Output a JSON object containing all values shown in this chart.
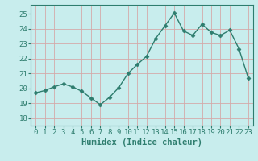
{
  "x": [
    0,
    1,
    2,
    3,
    4,
    5,
    6,
    7,
    8,
    9,
    10,
    11,
    12,
    13,
    14,
    15,
    16,
    17,
    18,
    19,
    20,
    21,
    22,
    23
  ],
  "y": [
    19.7,
    19.85,
    20.1,
    20.3,
    20.1,
    19.8,
    19.35,
    18.9,
    19.4,
    20.05,
    21.0,
    21.6,
    22.15,
    23.35,
    24.2,
    25.05,
    23.85,
    23.55,
    24.3,
    23.75,
    23.55,
    23.9,
    22.65,
    20.7
  ],
  "line_color": "#2e7d6e",
  "bg_color": "#c8eded",
  "grid_color": "#d4aaaa",
  "xlabel": "Humidex (Indice chaleur)",
  "ylim": [
    17.5,
    25.6
  ],
  "xlim": [
    -0.5,
    23.5
  ],
  "yticks": [
    18,
    19,
    20,
    21,
    22,
    23,
    24,
    25
  ],
  "xticks": [
    0,
    1,
    2,
    3,
    4,
    5,
    6,
    7,
    8,
    9,
    10,
    11,
    12,
    13,
    14,
    15,
    16,
    17,
    18,
    19,
    20,
    21,
    22,
    23
  ],
  "marker": "D",
  "marker_size": 2.5,
  "line_width": 1.0,
  "tick_fontsize": 6.5,
  "xlabel_fontsize": 7.5
}
